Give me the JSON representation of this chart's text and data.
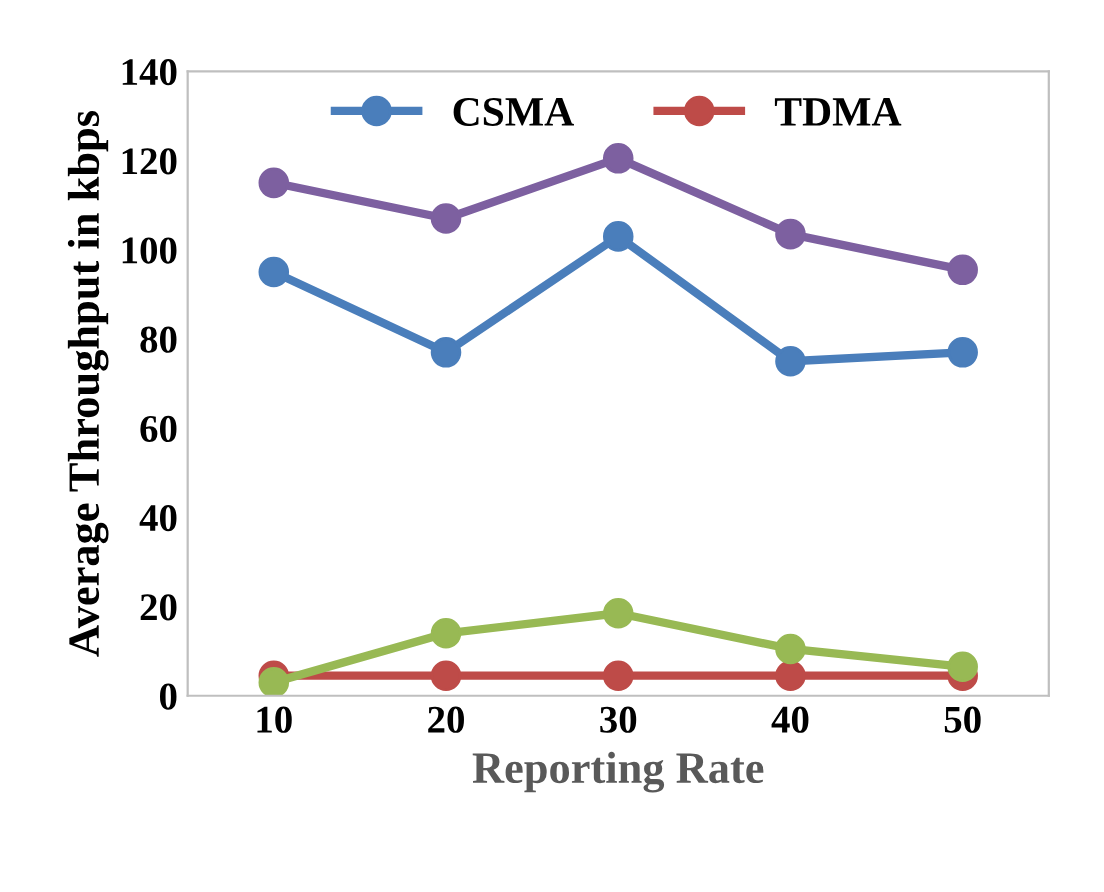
{
  "chart_data": {
    "type": "line",
    "xlabel": "Reporting Rate",
    "ylabel": "Average Throughput in kbps",
    "categories": [
      "10",
      "20",
      "30",
      "40",
      "50"
    ],
    "series": [
      {
        "color": "#7d60a0",
        "values": [
          115,
          107,
          120.5,
          103.5,
          95.5
        ]
      },
      {
        "name": "CSMA",
        "color": "#4a7ebb",
        "values": [
          95,
          77,
          103,
          75,
          77
        ]
      },
      {
        "name": "TDMA",
        "color": "#be4b48",
        "values": [
          4.5,
          4.5,
          4.5,
          4.5,
          4.5
        ]
      },
      {
        "color": "#98b954",
        "values": [
          3,
          14,
          18.5,
          10.5,
          6.5
        ]
      }
    ],
    "ylim": [
      0,
      140
    ],
    "yticks": [
      0,
      20,
      40,
      60,
      80,
      100,
      120,
      140
    ],
    "grid": false,
    "legend": "top",
    "marker": "circle",
    "line_style": "solid"
  }
}
